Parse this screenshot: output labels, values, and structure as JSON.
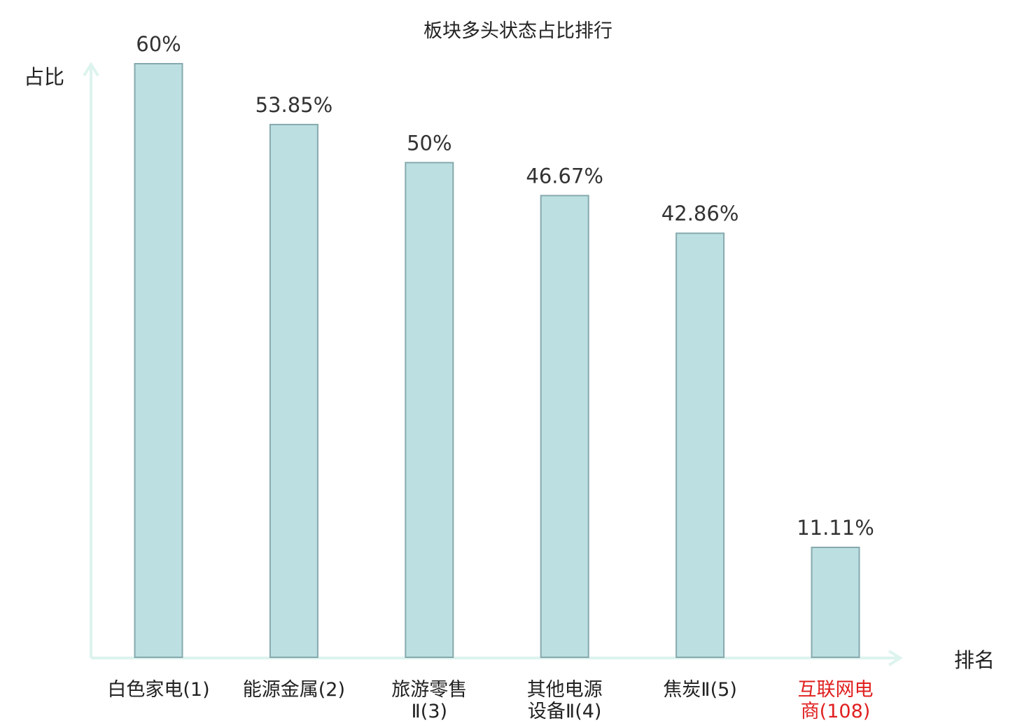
{
  "chart_data": {
    "type": "bar",
    "title": "板块多头状态占比排行",
    "xlabel": "排名",
    "ylabel": "占比",
    "ylim": [
      0,
      60
    ],
    "grid": false,
    "legend": "none",
    "categories": [
      {
        "lines": [
          "白色家电(1)"
        ],
        "highlight": false
      },
      {
        "lines": [
          "能源金属(2)"
        ],
        "highlight": false
      },
      {
        "lines": [
          "旅游零售",
          "Ⅱ(3)"
        ],
        "highlight": false
      },
      {
        "lines": [
          "其他电源",
          "设备Ⅱ(4)"
        ],
        "highlight": false
      },
      {
        "lines": [
          "焦炭Ⅱ(5)"
        ],
        "highlight": false
      },
      {
        "lines": [
          "互联网电",
          "商(108)"
        ],
        "highlight": true
      }
    ],
    "values": [
      60,
      53.85,
      50,
      46.67,
      42.86,
      11.11
    ],
    "value_labels": [
      "60%",
      "53.85%",
      "50%",
      "46.67%",
      "42.86%",
      "11.11%"
    ],
    "colors": {
      "bar_fill": "#bce0e2",
      "bar_stroke": "#86a9ad",
      "axis": "#ddf3ee",
      "label": "#222222",
      "highlight": "#e02020"
    }
  }
}
